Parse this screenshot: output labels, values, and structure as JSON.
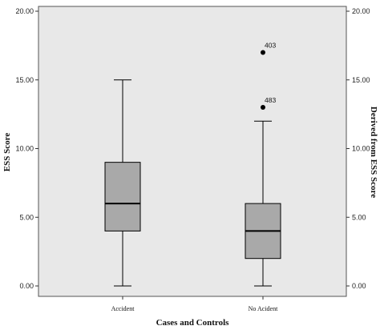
{
  "chart_data": {
    "type": "boxplot",
    "xlabel": "Cases and Controls",
    "ylabel": "ESS Score",
    "ylabel_right": "Derived from ESS  Score",
    "ylim": [
      0,
      20
    ],
    "yticks": [
      "0.00",
      "5.00",
      "10.00",
      "15.00",
      "20.00"
    ],
    "yticks_right": [
      "0.00",
      "5.00",
      "10.00",
      "15.00",
      "20.00"
    ],
    "categories": [
      "Accident",
      "No Acident"
    ],
    "boxes": [
      {
        "category": "Accident",
        "min": 0,
        "q1": 4,
        "median": 6,
        "q3": 9,
        "max": 15,
        "outliers": []
      },
      {
        "category": "No Acident",
        "min": 0,
        "q1": 2,
        "median": 4,
        "q3": 6,
        "max": 12,
        "outliers": [
          {
            "value": 13,
            "label": "483"
          },
          {
            "value": 17,
            "label": "403"
          }
        ]
      }
    ],
    "colors": {
      "plot_background": "#e8e8e8",
      "box_fill": "#a9a9a9",
      "line": "#000000"
    },
    "grid": false
  }
}
